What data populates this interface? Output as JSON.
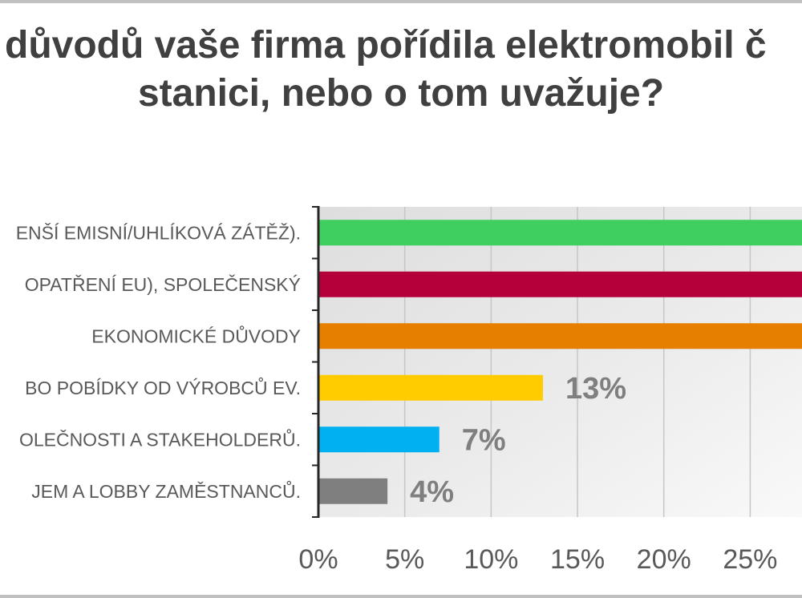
{
  "chart_data": {
    "type": "bar",
    "orientation": "horizontal",
    "title": [
      "důvodů vaše firma pořídila elektromobil č",
      "stanici, nebo o tom uvažuje?"
    ],
    "categories": [
      "ENŠÍ EMISNÍ/UHLÍKOVÁ ZÁTĚŽ).",
      "OPATŘENÍ EU), SPOLEČENSKÝ",
      "EKONOMICKÉ DŮVODY",
      "BO POBÍDKY OD VÝROBCŮ EV.",
      "OLEČNOSTI A STAKEHOLDERŮ.",
      "JEM A LOBBY ZAMĚSTNANCŮ."
    ],
    "values": [
      null,
      null,
      null,
      13,
      7,
      4
    ],
    "data_labels": [
      null,
      null,
      null,
      "13%",
      "7%",
      "4%"
    ],
    "x_ticks": [
      0,
      5,
      10,
      15,
      20,
      25
    ],
    "x_tick_labels": [
      "0%",
      "5%",
      "10%",
      "15%",
      "20%",
      "25%"
    ],
    "xlim": [
      0,
      28
    ],
    "colors": [
      "#3ecf5e",
      "#b3003b",
      "#e67e00",
      "#ffcc00",
      "#00b0f0",
      "#7f7f7f"
    ],
    "grid": true,
    "legend": "none"
  }
}
